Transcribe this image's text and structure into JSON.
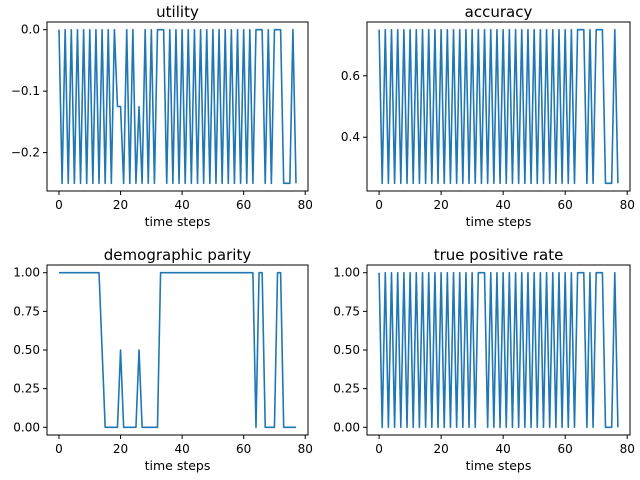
{
  "chart_data": [
    {
      "type": "line",
      "title": "utility",
      "xlabel": "time steps",
      "ylabel": "",
      "xlim": [
        -3.9,
        80.9
      ],
      "ylim": [
        -0.2625,
        0.0125
      ],
      "xticks": [
        0,
        20,
        40,
        60,
        80
      ],
      "xtick_labels": [
        "0",
        "20",
        "40",
        "60",
        "80"
      ],
      "yticks": [
        0.0,
        -0.1,
        -0.2
      ],
      "ytick_labels": [
        "0.0",
        "−0.1",
        "−0.2"
      ],
      "grid": false,
      "color": "#1f77b4",
      "y_pattern": {
        "high": 0,
        "low": -0.25,
        "steps": 78,
        "overrides": {
          "19": -0.125,
          "20": -0.125,
          "26": -0.125,
          "33": 0,
          "65": 0,
          "66": 0,
          "71": 0,
          "72": 0,
          "74": -0.25,
          "75": -0.25
        }
      }
    },
    {
      "type": "line",
      "title": "accuracy",
      "xlabel": "time steps",
      "ylabel": "",
      "xlim": [
        -3.9,
        80.9
      ],
      "ylim": [
        0.225,
        0.775
      ],
      "xticks": [
        0,
        20,
        40,
        60,
        80
      ],
      "xtick_labels": [
        "0",
        "20",
        "40",
        "60",
        "80"
      ],
      "yticks": [
        0.4,
        0.6
      ],
      "ytick_labels": [
        "0.4",
        "0.6"
      ],
      "grid": false,
      "color": "#1f77b4",
      "y_pattern": {
        "high": 0.75,
        "low": 0.25,
        "steps": 78,
        "overrides": {
          "65": 0.75,
          "66": 0.75,
          "71": 0.75,
          "72": 0.75,
          "74": 0.25,
          "75": 0.25
        }
      }
    },
    {
      "type": "line",
      "title": "demographic parity",
      "xlabel": "time steps",
      "ylabel": "",
      "xlim": [
        -3.9,
        80.9
      ],
      "ylim": [
        -0.05,
        1.05
      ],
      "xticks": [
        0,
        20,
        40,
        60,
        80
      ],
      "xtick_labels": [
        "0",
        "20",
        "40",
        "60",
        "80"
      ],
      "yticks": [
        0.0,
        0.25,
        0.5,
        0.75,
        1.0
      ],
      "ytick_labels": [
        "0.00",
        "0.25",
        "0.50",
        "0.75",
        "1.00"
      ],
      "grid": false,
      "color": "#1f77b4",
      "x": [
        0,
        13,
        15,
        19,
        20,
        21,
        25,
        26,
        27,
        32,
        33,
        63,
        64,
        65,
        66,
        67,
        70,
        71,
        72,
        73,
        76,
        77
      ],
      "y": [
        1,
        1,
        0,
        0,
        0.5,
        0,
        0,
        0.5,
        0,
        0,
        1,
        1,
        0,
        1,
        1,
        0,
        0,
        1,
        1,
        0,
        0,
        0
      ]
    },
    {
      "type": "line",
      "title": "true positive rate",
      "xlabel": "time steps",
      "ylabel": "",
      "xlim": [
        -3.9,
        80.9
      ],
      "ylim": [
        -0.05,
        1.05
      ],
      "xticks": [
        0,
        20,
        40,
        60,
        80
      ],
      "xtick_labels": [
        "0",
        "20",
        "40",
        "60",
        "80"
      ],
      "yticks": [
        0.0,
        0.25,
        0.5,
        0.75,
        1.0
      ],
      "ytick_labels": [
        "0.00",
        "0.25",
        "0.50",
        "0.75",
        "1.00"
      ],
      "grid": false,
      "color": "#1f77b4",
      "y_pattern": {
        "high": 1,
        "low": 0,
        "steps": 78,
        "overrides": {
          "33": 1,
          "65": 1,
          "66": 1,
          "71": 1,
          "72": 1,
          "74": 0,
          "75": 0
        }
      }
    }
  ]
}
